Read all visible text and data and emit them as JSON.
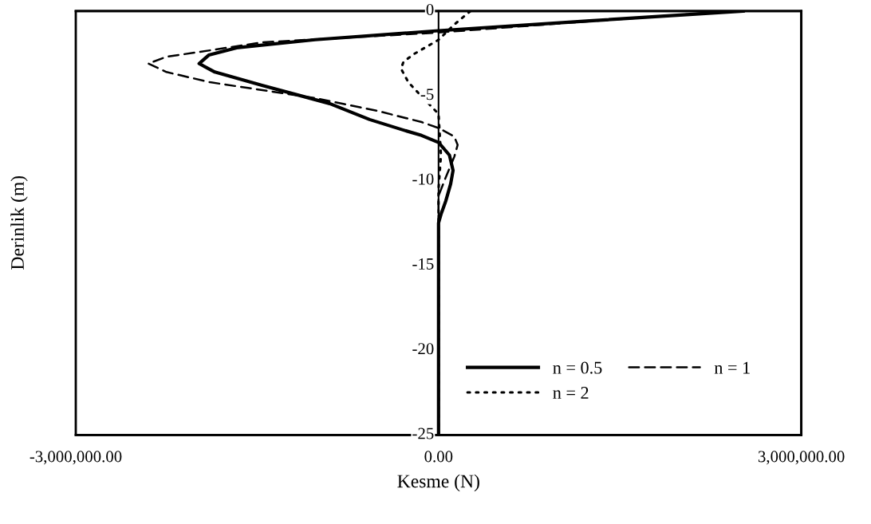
{
  "chart_data": {
    "type": "line",
    "xlabel": "Kesme (N)",
    "ylabel": "Derinlik (m)",
    "xlim": [
      -3000000,
      3000000
    ],
    "ylim": [
      -25,
      0
    ],
    "xticks": [
      {
        "value": -3000000,
        "label": "-3,000,000.00"
      },
      {
        "value": 0,
        "label": "0.00"
      },
      {
        "value": 3000000,
        "label": "3,000,000.00"
      }
    ],
    "yticks": [
      -25,
      -20,
      -15,
      -10,
      -5,
      0
    ],
    "grid": false,
    "legend": "bottom right",
    "marker": "none",
    "series": [
      {
        "name": "n = 0.5",
        "color": "#000000",
        "line_style": "solid",
        "x": [
          2520000,
          1250000,
          0,
          -1020000,
          -1670000,
          -1900000,
          -1980000,
          -1850000,
          -1460000,
          -900000,
          -570000,
          -300000,
          -140000,
          0,
          90000,
          120000,
          100000,
          60000,
          20000,
          0,
          0
        ],
        "values": [
          0,
          -0.58,
          -1.16,
          -1.69,
          -2.17,
          -2.6,
          -3.1,
          -3.6,
          -4.38,
          -5.46,
          -6.4,
          -7.0,
          -7.34,
          -7.75,
          -8.5,
          -9.4,
          -10.2,
          -11.2,
          -12.0,
          -12.5,
          -25
        ]
      },
      {
        "name": "n = 1",
        "color": "#000000",
        "line_style": "dashed",
        "x": [
          2450000,
          1200000,
          0,
          -1460000,
          -1890000,
          -2250000,
          -2400000,
          -2250000,
          -1890000,
          -1020000,
          -500000,
          -140000,
          0,
          130000,
          158000,
          130000,
          60000,
          0,
          0
        ],
        "values": [
          0,
          -0.63,
          -1.27,
          -1.85,
          -2.32,
          -2.7,
          -3.1,
          -3.6,
          -4.2,
          -5.14,
          -5.9,
          -6.55,
          -6.9,
          -7.4,
          -7.9,
          -8.6,
          -9.8,
          -10.9,
          -25
        ]
      },
      {
        "name": "n = 2",
        "color": "#000000",
        "line_style": "dotted",
        "x": [
          264000,
          130000,
          0,
          -204000,
          -290000,
          -310000,
          -250000,
          -158000,
          0,
          20000,
          0,
          0
        ],
        "values": [
          0,
          -0.8,
          -1.7,
          -2.54,
          -3.0,
          -3.4,
          -4.2,
          -4.9,
          -6.07,
          -8.5,
          -10.5,
          -25
        ]
      }
    ]
  }
}
